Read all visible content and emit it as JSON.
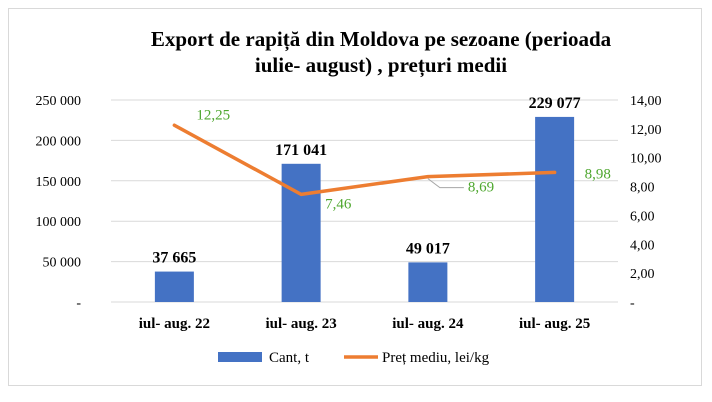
{
  "chart_data": {
    "type": "bar",
    "title_line1": "Export de rapiță din  Moldova pe sezoane (perioada",
    "title_line2": "iulie- august) , prețuri medii",
    "categories": [
      "iul- aug. 22",
      "iul- aug. 23",
      "iul- aug. 24",
      "iul- aug. 25"
    ],
    "series": [
      {
        "name": "Cant, t",
        "type": "bar",
        "axis": "left",
        "values": [
          37665,
          171041,
          49017,
          229077
        ],
        "labels": [
          "37 665",
          "171 041",
          "49 017",
          "229 077"
        ],
        "color": "#4472c4"
      },
      {
        "name": "Preț mediu, lei/kg",
        "type": "line",
        "axis": "right",
        "values": [
          12.25,
          7.46,
          8.69,
          8.98
        ],
        "labels": [
          "12,25",
          "7,46",
          "8,69",
          "8,98"
        ],
        "color": "#ed7d31",
        "label_color": "#4ea72e"
      }
    ],
    "y_left": {
      "ylim": [
        0,
        250000
      ],
      "ticks": [
        0,
        50000,
        100000,
        150000,
        200000,
        250000
      ],
      "tick_labels": [
        "-",
        "50 000",
        "100 000",
        "150 000",
        "200 000",
        "250 000"
      ]
    },
    "y_right": {
      "ylim": [
        0,
        14
      ],
      "ticks": [
        0,
        2,
        4,
        6,
        8,
        10,
        12,
        14
      ],
      "tick_labels": [
        "-",
        "2,00",
        "4,00",
        "6,00",
        "8,00",
        "10,00",
        "12,00",
        "14,00"
      ]
    },
    "grid": true,
    "legend": "bottom"
  }
}
